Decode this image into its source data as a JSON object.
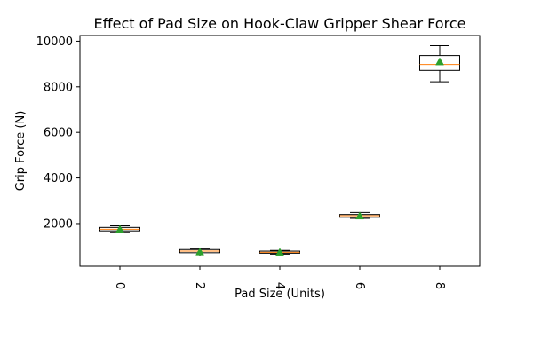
{
  "chart_data": {
    "type": "box",
    "title": "Effect of Pad Size on Hook-Claw Gripper Shear Force",
    "xlabel": "Pad Size (Units)",
    "ylabel": "Grip Force (N)",
    "ylim": [
      130,
      10250
    ],
    "yticks": [
      2000,
      4000,
      6000,
      8000,
      10000
    ],
    "categories": [
      "0",
      "2",
      "4",
      "6",
      "8"
    ],
    "boxes": [
      {
        "category": "0",
        "whisker_low": 1620,
        "q1": 1680,
        "median": 1750,
        "q3": 1830,
        "whisker_high": 1900,
        "mean": 1750
      },
      {
        "category": "2",
        "whisker_low": 580,
        "q1": 720,
        "median": 790,
        "q3": 860,
        "whisker_high": 900,
        "mean": 760
      },
      {
        "category": "4",
        "whisker_low": 660,
        "q1": 700,
        "median": 740,
        "q3": 790,
        "whisker_high": 820,
        "mean": 740
      },
      {
        "category": "6",
        "whisker_low": 2230,
        "q1": 2280,
        "median": 2350,
        "q3": 2400,
        "whisker_high": 2490,
        "mean": 2340
      },
      {
        "category": "8",
        "whisker_low": 8220,
        "q1": 8720,
        "median": 8980,
        "q3": 9370,
        "whisker_high": 9800,
        "mean": 9100
      }
    ],
    "grid": false,
    "colors": {
      "box": "#000000",
      "median": "#ff7f0e",
      "mean": "#2ca02c"
    }
  }
}
